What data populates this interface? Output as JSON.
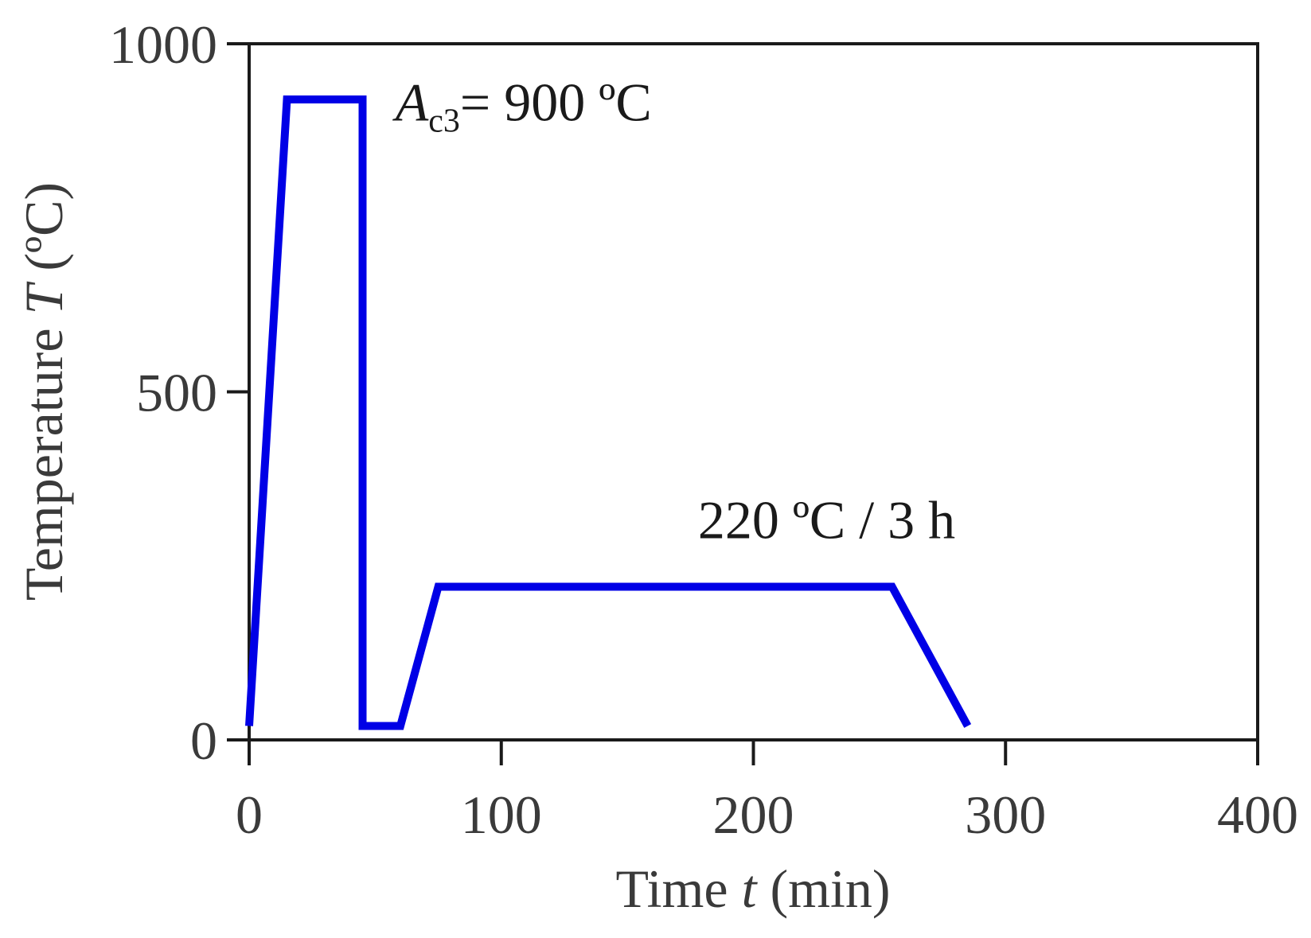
{
  "chart_data": {
    "type": "line",
    "xlabel": {
      "prefix": "Time ",
      "var": "t",
      "suffix": " (min)"
    },
    "ylabel": {
      "prefix": "Temperature ",
      "var": "T",
      "suffix": " (ºC)"
    },
    "xlim": [
      0,
      400
    ],
    "ylim": [
      0,
      1000
    ],
    "xticks": [
      0,
      100,
      200,
      300,
      400
    ],
    "yticks": [
      0,
      500,
      1000
    ],
    "grid": false,
    "series": [
      {
        "color": "#0000e6",
        "x": [
          0,
          15,
          45,
          45,
          60,
          75,
          255,
          285
        ],
        "y": [
          20,
          920,
          920,
          20,
          20,
          220,
          220,
          20
        ]
      }
    ],
    "annotations": [
      {
        "id": "ac3",
        "var": "A",
        "sub": "c3",
        "text": "= 900 ºC",
        "x": 58,
        "y": 890
      },
      {
        "id": "temper",
        "text": "220 ºC / 3 h",
        "x": 178,
        "y": 290
      }
    ]
  }
}
